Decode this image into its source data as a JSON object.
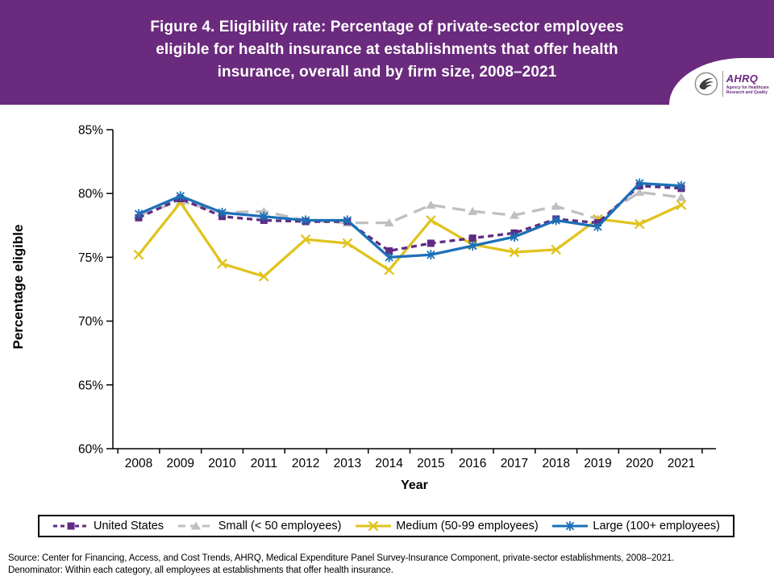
{
  "header": {
    "title_lines": [
      "Figure 4. Eligibility rate: Percentage of private-sector employees",
      "eligible for health insurance at establishments that offer health",
      "insurance, overall and by firm size, 2008–2021"
    ],
    "bg_color": "#6A2A7D",
    "logo": {
      "org": "AHRQ",
      "tagline_line1": "Agency for Healthcare",
      "tagline_line2": "Research and Quality"
    }
  },
  "chart_data": {
    "type": "line",
    "title": "",
    "xlabel": "Year",
    "ylabel": "Percentage eligible",
    "ylim": [
      60,
      85
    ],
    "ytick_labels": [
      "60%",
      "65%",
      "70%",
      "75%",
      "80%",
      "85%"
    ],
    "categories": [
      2008,
      2009,
      2010,
      2011,
      2012,
      2013,
      2014,
      2015,
      2016,
      2017,
      2018,
      2019,
      2020,
      2021
    ],
    "grid": false,
    "legend_position": "bottom",
    "series": [
      {
        "name": "United States",
        "color": "#5F2B83",
        "dash": "7 5",
        "legend_dash": "5 4",
        "marker": "square",
        "values": [
          78.1,
          79.6,
          78.2,
          77.9,
          77.8,
          77.8,
          75.5,
          76.1,
          76.5,
          76.9,
          78.0,
          77.7,
          80.6,
          80.4
        ]
      },
      {
        "name": "Small (< 50 employees)",
        "color": "#BFBFBF",
        "dash": "16 9",
        "legend_dash": "9 6",
        "marker": "triangle",
        "values": [
          78.3,
          79.4,
          78.5,
          78.6,
          77.9,
          77.7,
          77.7,
          79.1,
          78.6,
          78.3,
          79.0,
          78.0,
          80.1,
          79.7
        ]
      },
      {
        "name": "Medium (50-99 employees)",
        "color": "#E0C31E",
        "dash": "",
        "legend_dash": "",
        "marker": "x",
        "values": [
          75.2,
          79.3,
          74.5,
          73.5,
          76.4,
          76.1,
          74.0,
          77.9,
          76.0,
          75.4,
          75.6,
          78.0,
          77.6,
          79.1
        ]
      },
      {
        "name": "Large (100+ employees)",
        "color": "#1C70B8",
        "dash": "",
        "legend_dash": "",
        "marker": "asterisk",
        "values": [
          78.4,
          79.8,
          78.5,
          78.2,
          77.9,
          77.9,
          75.0,
          75.2,
          75.9,
          76.6,
          77.9,
          77.4,
          80.8,
          80.6
        ]
      }
    ]
  },
  "footer": {
    "line1": "Source: Center for Financing, Access, and Cost Trends, AHRQ, Medical Expenditure Panel Survey-Insurance Component, private-sector establishments, 2008–2021.",
    "line2": "Denominator: Within each category, all employees at establishments that offer health insurance."
  }
}
